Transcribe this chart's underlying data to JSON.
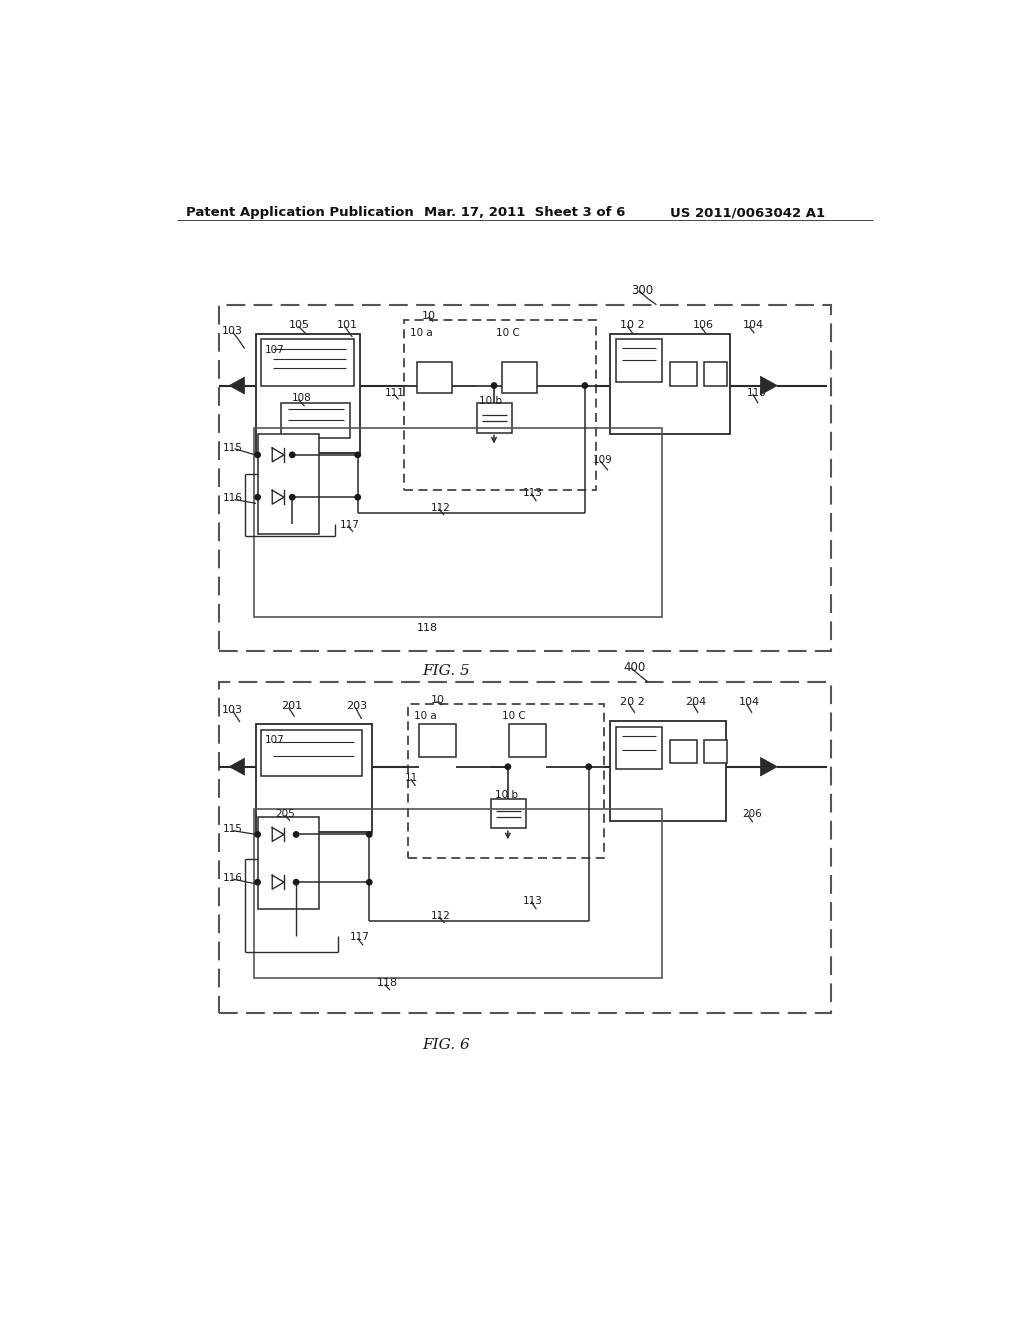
{
  "page_header_left": "Patent Application Publication",
  "page_header_mid": "Mar. 17, 2011  Sheet 3 of 6",
  "page_header_right": "US 2011/0063042 A1",
  "fig5_label": "FIG. 5",
  "fig6_label": "FIG. 6",
  "background": "#ffffff",
  "line_color": "#2a2a2a",
  "gray": "#888888"
}
